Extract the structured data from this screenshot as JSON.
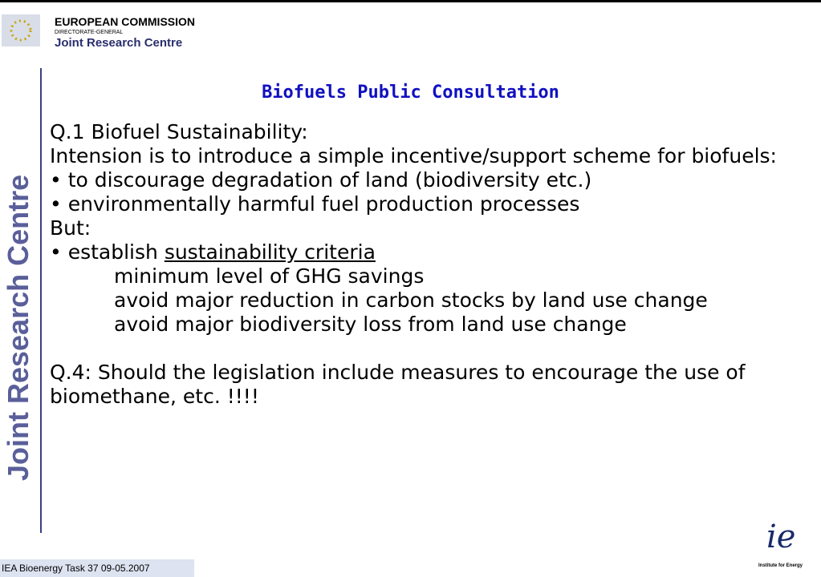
{
  "header": {
    "org": "EUROPEAN COMMISSION",
    "dg": "DIRECTORATE-GENERAL",
    "centre": "Joint Research Centre"
  },
  "side_label": "Joint Research Centre",
  "title": "Biofuels Public Consultation",
  "body": {
    "q1": "Q.1 Biofuel Sustainability:",
    "intro": "Intension is to introduce a simple incentive/support scheme for biofuels:",
    "bullets": [
      "to discourage degradation of land (biodiversity etc.)",
      "environmentally harmful fuel production processes"
    ],
    "but": "But:",
    "criteria_prefix": "establish ",
    "criteria": "sustainability criteria",
    "sub": [
      "minimum level of GHG savings",
      "avoid major reduction in carbon stocks by land use change",
      "avoid major biodiversity loss from land use change"
    ],
    "q4": "Q.4: Should the legislation include measures to encourage the use of biomethane, etc. !!!!"
  },
  "footer": {
    "text": "IEA Bioenergy Task 37 09-05.2007",
    "logo": "ie",
    "logo_caption": "Institute for Energy"
  }
}
